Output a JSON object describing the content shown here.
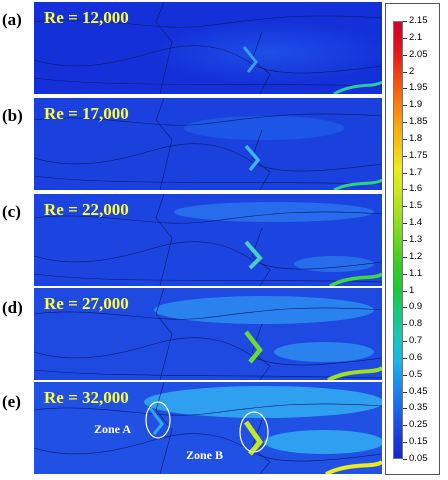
{
  "panels": [
    {
      "letter": "(a)",
      "re": "Re = 12,000"
    },
    {
      "letter": "(b)",
      "re": "Re = 17,000"
    },
    {
      "letter": "(c)",
      "re": "Re = 22,000"
    },
    {
      "letter": "(d)",
      "re": "Re = 27,000"
    },
    {
      "letter": "(e)",
      "re": "Re = 32,000"
    }
  ],
  "zones": {
    "a": "Zone A",
    "b": "Zone B"
  },
  "colorbar": {
    "ticks": [
      "2.15",
      "2.1",
      "2.05",
      "2",
      "1.95",
      "1.9",
      "1.85",
      "1.8",
      "1.75",
      "1.7",
      "1.6",
      "1.5",
      "1.4",
      "1.3",
      "1.2",
      "1.1",
      "1",
      "0.9",
      "0.8",
      "0.7",
      "0.6",
      "0.5",
      "0.45",
      "0.35",
      "0.25",
      "0.15",
      "0.05"
    ],
    "colors": [
      "#d2002a",
      "#e01020",
      "#ef3a14",
      "#f56a10",
      "#f79a10",
      "#f5c218",
      "#ecec1c",
      "#c8e81e",
      "#9ee01e",
      "#6cd81e",
      "#38cc24",
      "#1cc83a",
      "#18c87c",
      "#18c8b8",
      "#1cb4e8",
      "#1c8cf0",
      "#1c64e8",
      "#1c40dc",
      "#1828c8"
    ],
    "value_max": 2.15,
    "value_min": 0.05
  }
}
